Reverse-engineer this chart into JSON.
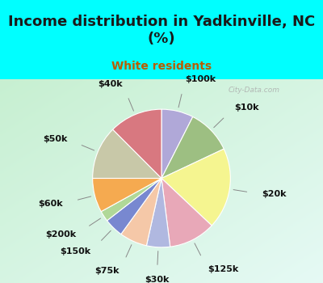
{
  "title": "Income distribution in Yadkinville, NC\n(%)",
  "subtitle": "White residents",
  "title_color": "#1a1a1a",
  "subtitle_color": "#b85c00",
  "bg_top": "#00ffff",
  "labels": [
    "$100k",
    "$10k",
    "$20k",
    "$125k",
    "$30k",
    "$75k",
    "$150k",
    "$200k",
    "$60k",
    "$50k",
    "$40k"
  ],
  "values": [
    7.5,
    10.5,
    19.0,
    11.0,
    5.5,
    6.5,
    4.5,
    2.5,
    8.0,
    12.5,
    12.5
  ],
  "colors": [
    "#b0a8d8",
    "#9dbf82",
    "#f5f590",
    "#e8a8b8",
    "#b0b8e0",
    "#f5c8a8",
    "#7888d0",
    "#b0d898",
    "#f5aa50",
    "#c8c8a8",
    "#d87880"
  ],
  "label_color": "#111111",
  "label_fontsize": 8,
  "watermark": "City-Data.com",
  "chart_bg_colors": [
    "#d0ede0",
    "#e8f8f0",
    "#c8f0e8",
    "#d8f0d8"
  ],
  "title_fontsize": 13,
  "subtitle_fontsize": 10
}
